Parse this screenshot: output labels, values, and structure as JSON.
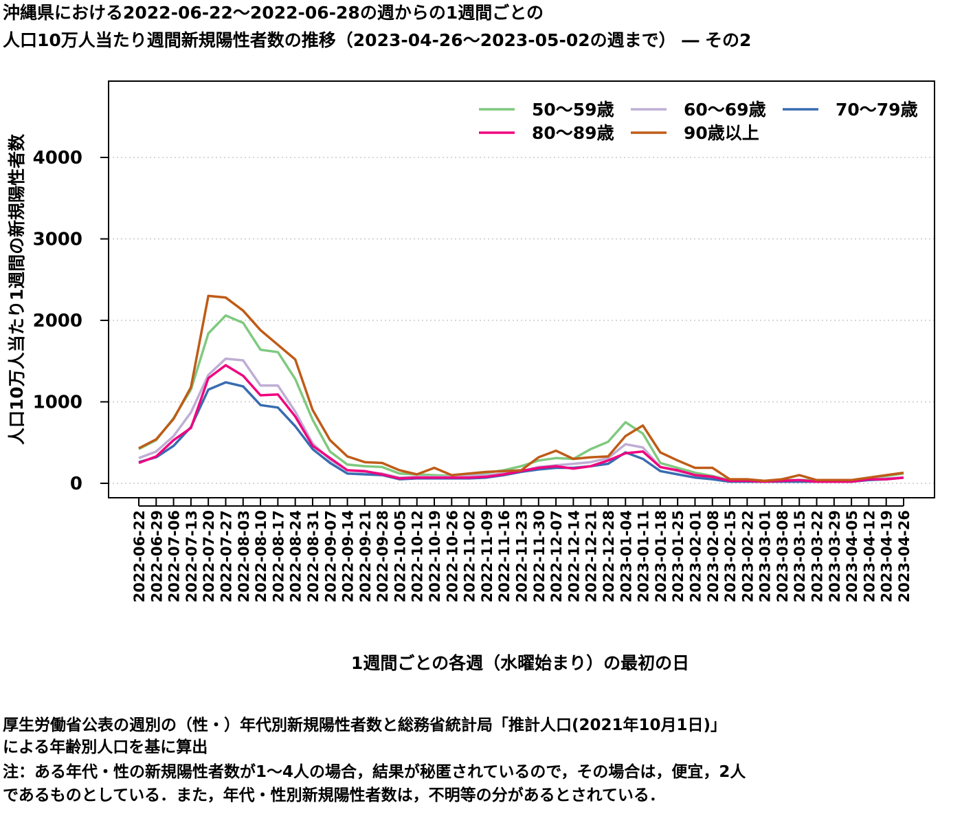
{
  "title_line1": "沖縄県における2022-06-22～2022-06-28の週からの1週間ごとの",
  "title_line2": "人口10万人当たり週間新規陽性者数の推移（2023-04-26～2023-05-02の週まで） ― その2",
  "notes": {
    "line1": "厚生労働省公表の週別の（性・）年代別新規陽性者数と総務省統計局「推計人口(2021年10月1日)」",
    "line2": "による年齢別人口を基に算出",
    "line3": "注：ある年代・性の新規陽性者数が1～4人の場合，結果が秘匿されているので，その場合は，便宜，2人",
    "line4": "であるものとしている．また，年代・性別新規陽性者数は，不明等の分があるとされている．"
  },
  "chart_data": {
    "type": "line",
    "xlabel": "1週間ごとの各週（水曜始まり）の最初の日",
    "ylabel": "人口10万人当たり1週間の新規陽性者数",
    "ylim": [
      -100,
      4950
    ],
    "yticks": [
      0,
      1000,
      2000,
      3000,
      4000
    ],
    "grid": "horizontal dotted",
    "legend_position": "top-right",
    "categories": [
      "2022-06-22",
      "2022-06-29",
      "2022-07-06",
      "2022-07-13",
      "2022-07-20",
      "2022-07-27",
      "2022-08-03",
      "2022-08-10",
      "2022-08-17",
      "2022-08-24",
      "2022-08-31",
      "2022-09-07",
      "2022-09-14",
      "2022-09-21",
      "2022-09-28",
      "2022-10-05",
      "2022-10-12",
      "2022-10-19",
      "2022-10-26",
      "2022-11-02",
      "2022-11-09",
      "2022-11-16",
      "2022-11-23",
      "2022-11-30",
      "2022-12-07",
      "2022-12-14",
      "2022-12-21",
      "2022-12-28",
      "2023-01-04",
      "2023-01-11",
      "2023-01-18",
      "2023-01-25",
      "2023-02-01",
      "2023-02-08",
      "2023-02-15",
      "2023-02-22",
      "2023-03-01",
      "2023-03-08",
      "2023-03-15",
      "2023-03-22",
      "2023-03-29",
      "2023-04-05",
      "2023-04-12",
      "2023-04-19",
      "2023-04-26"
    ],
    "series": [
      {
        "name": "50～59歳",
        "color": "#7fc97f",
        "values": [
          420,
          530,
          800,
          1150,
          1840,
          2060,
          1970,
          1640,
          1610,
          1280,
          780,
          390,
          230,
          210,
          200,
          120,
          110,
          100,
          90,
          110,
          130,
          160,
          210,
          280,
          310,
          300,
          420,
          510,
          750,
          610,
          250,
          190,
          130,
          90,
          40,
          40,
          30,
          40,
          40,
          40,
          40,
          40,
          70,
          90,
          120
        ]
      },
      {
        "name": "60～69歳",
        "color": "#beaed4",
        "values": [
          310,
          390,
          580,
          870,
          1330,
          1530,
          1510,
          1200,
          1200,
          880,
          490,
          290,
          160,
          140,
          120,
          70,
          80,
          80,
          80,
          90,
          100,
          120,
          150,
          200,
          220,
          240,
          260,
          310,
          480,
          440,
          200,
          150,
          100,
          70,
          30,
          30,
          30,
          30,
          30,
          30,
          30,
          30,
          50,
          60,
          70
        ]
      },
      {
        "name": "70～79歳",
        "color": "#386cb0",
        "values": [
          260,
          320,
          460,
          690,
          1150,
          1240,
          1190,
          960,
          930,
          700,
          420,
          250,
          120,
          110,
          100,
          50,
          60,
          60,
          60,
          60,
          70,
          100,
          140,
          170,
          190,
          190,
          210,
          240,
          380,
          300,
          150,
          110,
          70,
          50,
          20,
          20,
          20,
          20,
          20,
          20,
          20,
          20,
          40,
          50,
          70
        ]
      },
      {
        "name": "80～89歳",
        "color": "#f0027f",
        "values": [
          250,
          330,
          530,
          680,
          1290,
          1450,
          1320,
          1080,
          1090,
          820,
          460,
          310,
          160,
          150,
          110,
          60,
          70,
          70,
          70,
          70,
          80,
          110,
          150,
          190,
          210,
          180,
          210,
          280,
          370,
          390,
          200,
          160,
          100,
          80,
          30,
          30,
          20,
          30,
          40,
          20,
          20,
          20,
          50,
          50,
          70
        ]
      },
      {
        "name": "90歳以上",
        "color": "#bf5b17",
        "values": [
          430,
          540,
          790,
          1180,
          2300,
          2280,
          2120,
          1880,
          1700,
          1520,
          900,
          530,
          330,
          260,
          250,
          160,
          110,
          190,
          100,
          120,
          140,
          150,
          160,
          320,
          400,
          300,
          320,
          330,
          580,
          710,
          380,
          280,
          190,
          190,
          50,
          50,
          30,
          50,
          100,
          40,
          40,
          40,
          70,
          100,
          130
        ]
      }
    ]
  }
}
